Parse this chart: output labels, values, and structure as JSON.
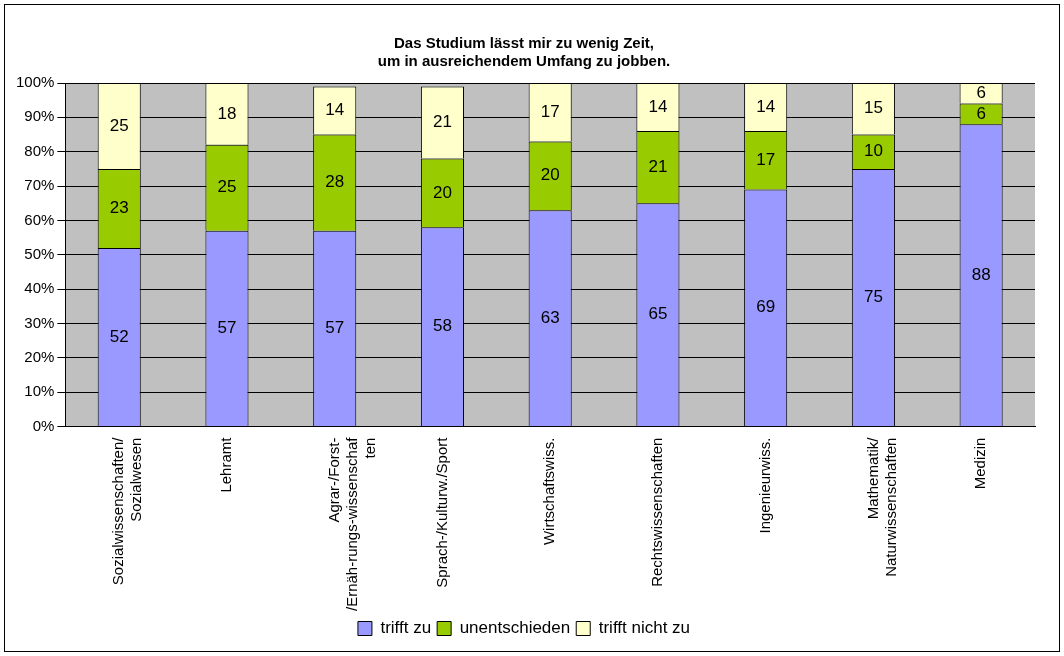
{
  "chart_data": {
    "type": "bar",
    "stacked": true,
    "title": "Das Studium lässt mir zu wenig Zeit,\num in ausreichendem Umfang zu jobben.",
    "categories": [
      "Sozialwissenschaften/\nSozialwesen",
      "Lehramt",
      "Agrar-/Forst-\n/Ernäh-rungs-wissenschaf\nten",
      "Sprach-/Kulturw./Sport",
      "Wirtschaftswiss.",
      "Rechtswissenschaften",
      "Ingenieurwiss.",
      "Mathematik/\nNaturwissenschaften",
      "Medizin"
    ],
    "series": [
      {
        "name": "trifft zu",
        "color": "#9999ff",
        "values": [
          52,
          57,
          57,
          58,
          63,
          65,
          69,
          75,
          88
        ]
      },
      {
        "name": "unentschieden",
        "color": "#99cc00",
        "values": [
          23,
          25,
          28,
          20,
          20,
          21,
          17,
          10,
          6
        ]
      },
      {
        "name": "trifft nicht zu",
        "color": "#ffffcc",
        "values": [
          25,
          18,
          14,
          21,
          17,
          14,
          14,
          15,
          6
        ]
      }
    ],
    "ylim": [
      0,
      100
    ],
    "yticks": [
      {
        "value": 0,
        "label": "0%"
      },
      {
        "value": 10,
        "label": "10%"
      },
      {
        "value": 20,
        "label": "20%"
      },
      {
        "value": 30,
        "label": "30%"
      },
      {
        "value": 40,
        "label": "40%"
      },
      {
        "value": 50,
        "label": "50%"
      },
      {
        "value": 60,
        "label": "60%"
      },
      {
        "value": 70,
        "label": "70%"
      },
      {
        "value": 80,
        "label": "80%"
      },
      {
        "value": 90,
        "label": "90%"
      },
      {
        "value": 100,
        "label": "100%"
      }
    ],
    "grid": "y",
    "legend": "bottom",
    "data_labels": true
  }
}
